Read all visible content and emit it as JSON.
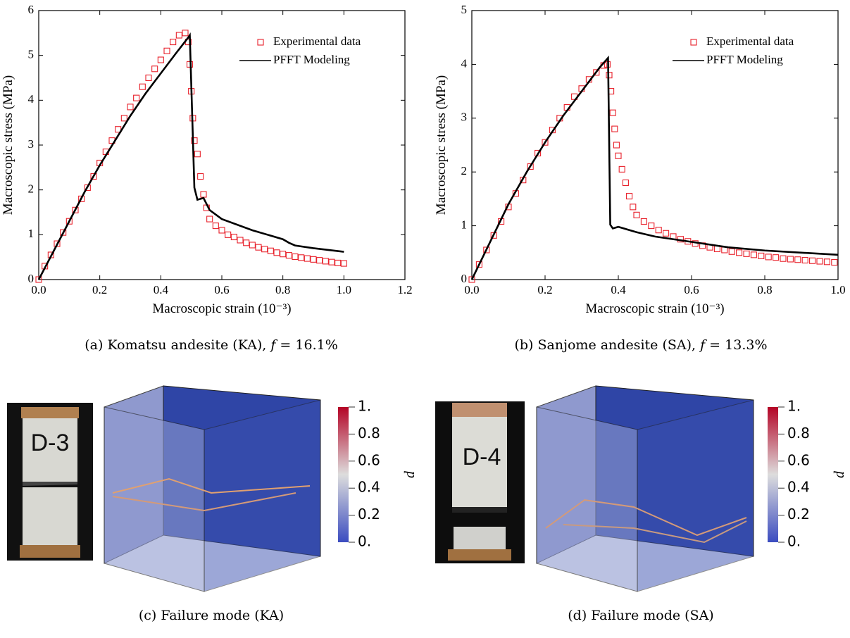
{
  "chart_data": [
    {
      "type": "scatter-line",
      "xlabel": "Macroscopic strain (10⁻³)",
      "ylabel": "Macroscopic stress (MPa)",
      "xlim": [
        0,
        1.2
      ],
      "ylim": [
        0,
        6
      ],
      "xticks": [
        {
          "value": 0,
          "label": "0.0"
        },
        0.2,
        0.4,
        0.6,
        0.8,
        {
          "value": 1,
          "label": "1.0"
        },
        1.2
      ],
      "yticks": [
        0,
        1,
        2,
        3,
        4,
        5,
        6
      ],
      "legend": "upper right",
      "series": [
        {
          "name": "Experimental data",
          "color": "#e8202a",
          "style": "marker",
          "x": [
            0,
            0.02,
            0.04,
            0.06,
            0.08,
            0.1,
            0.12,
            0.14,
            0.16,
            0.18,
            0.2,
            0.22,
            0.24,
            0.26,
            0.28,
            0.3,
            0.32,
            0.34,
            0.36,
            0.38,
            0.4,
            0.42,
            0.44,
            0.46,
            0.48,
            0.49,
            0.495,
            0.5,
            0.505,
            0.51,
            0.52,
            0.53,
            0.54,
            0.55,
            0.56,
            0.58,
            0.6,
            0.62,
            0.64,
            0.66,
            0.68,
            0.7,
            0.72,
            0.74,
            0.76,
            0.78,
            0.8,
            0.82,
            0.84,
            0.86,
            0.88,
            0.9,
            0.92,
            0.94,
            0.96,
            0.98,
            1.0
          ],
          "values": [
            0,
            0.3,
            0.55,
            0.8,
            1.05,
            1.3,
            1.55,
            1.8,
            2.05,
            2.3,
            2.6,
            2.85,
            3.1,
            3.35,
            3.6,
            3.85,
            4.05,
            4.3,
            4.5,
            4.7,
            4.9,
            5.1,
            5.3,
            5.45,
            5.5,
            5.3,
            4.8,
            4.2,
            3.6,
            3.1,
            2.8,
            2.3,
            1.9,
            1.6,
            1.35,
            1.2,
            1.1,
            1.0,
            0.95,
            0.88,
            0.82,
            0.77,
            0.72,
            0.68,
            0.64,
            0.6,
            0.57,
            0.54,
            0.51,
            0.49,
            0.47,
            0.45,
            0.43,
            0.41,
            0.39,
            0.37,
            0.36
          ]
        },
        {
          "name": "PFFT Modeling",
          "color": "#000000",
          "style": "line",
          "x": [
            0,
            0.05,
            0.1,
            0.15,
            0.2,
            0.25,
            0.3,
            0.35,
            0.4,
            0.45,
            0.49,
            0.495,
            0.51,
            0.52,
            0.54,
            0.56,
            0.6,
            0.7,
            0.8,
            0.82,
            0.84,
            0.9,
            1.0
          ],
          "values": [
            0,
            0.65,
            1.3,
            1.95,
            2.55,
            3.1,
            3.65,
            4.15,
            4.6,
            5.05,
            5.4,
            5.45,
            2.05,
            1.78,
            1.82,
            1.55,
            1.35,
            1.1,
            0.9,
            0.82,
            0.76,
            0.7,
            0.62
          ]
        }
      ]
    },
    {
      "type": "scatter-line",
      "xlabel": "Macroscopic strain (10⁻³)",
      "ylabel": "Macroscopic stress (MPa)",
      "xlim": [
        0,
        1
      ],
      "ylim": [
        0,
        5
      ],
      "xticks": [
        {
          "value": 0,
          "label": "0.0"
        },
        0.2,
        0.4,
        0.6,
        0.8,
        {
          "value": 1,
          "label": "1.0"
        }
      ],
      "yticks": [
        0,
        1,
        2,
        3,
        4,
        5
      ],
      "legend": "upper right",
      "series": [
        {
          "name": "Experimental data",
          "color": "#e8202a",
          "style": "marker",
          "x": [
            0,
            0.02,
            0.04,
            0.06,
            0.08,
            0.1,
            0.12,
            0.14,
            0.16,
            0.18,
            0.2,
            0.22,
            0.24,
            0.26,
            0.28,
            0.3,
            0.32,
            0.34,
            0.36,
            0.37,
            0.375,
            0.38,
            0.385,
            0.39,
            0.395,
            0.4,
            0.41,
            0.42,
            0.43,
            0.44,
            0.45,
            0.47,
            0.49,
            0.51,
            0.53,
            0.55,
            0.57,
            0.59,
            0.61,
            0.63,
            0.65,
            0.67,
            0.69,
            0.71,
            0.73,
            0.75,
            0.77,
            0.79,
            0.81,
            0.83,
            0.85,
            0.87,
            0.89,
            0.91,
            0.93,
            0.95,
            0.97,
            0.99
          ],
          "values": [
            0,
            0.28,
            0.55,
            0.82,
            1.08,
            1.35,
            1.6,
            1.85,
            2.1,
            2.35,
            2.55,
            2.78,
            3.0,
            3.2,
            3.4,
            3.55,
            3.72,
            3.85,
            3.98,
            4.0,
            3.8,
            3.5,
            3.1,
            2.8,
            2.5,
            2.3,
            2.05,
            1.8,
            1.55,
            1.35,
            1.2,
            1.08,
            1.0,
            0.92,
            0.86,
            0.8,
            0.75,
            0.71,
            0.67,
            0.63,
            0.6,
            0.57,
            0.55,
            0.52,
            0.5,
            0.48,
            0.46,
            0.44,
            0.42,
            0.41,
            0.39,
            0.38,
            0.37,
            0.36,
            0.35,
            0.34,
            0.33,
            0.32
          ]
        },
        {
          "name": "PFFT Modeling",
          "color": "#000000",
          "style": "line",
          "x": [
            0,
            0.05,
            0.1,
            0.15,
            0.2,
            0.25,
            0.3,
            0.35,
            0.372,
            0.378,
            0.385,
            0.4,
            0.45,
            0.5,
            0.6,
            0.7,
            0.8,
            0.9,
            1.0
          ],
          "values": [
            0,
            0.7,
            1.4,
            2.0,
            2.55,
            3.05,
            3.5,
            3.95,
            4.12,
            1.02,
            0.95,
            0.98,
            0.88,
            0.8,
            0.7,
            0.6,
            0.54,
            0.5,
            0.46
          ]
        }
      ]
    }
  ],
  "captions": [
    [
      "(a) Komatsu andesite (KA), ",
      "f",
      " = 16.1%"
    ],
    [
      "(b) Sanjome andesite (SA), ",
      "f",
      " = 13.3%"
    ],
    [
      "(c) Failure mode (KA)"
    ],
    [
      "(d) Failure mode (SA)"
    ]
  ],
  "photo_labels": [
    "D-3",
    "D-4"
  ],
  "colorbars": [
    {
      "label": "d",
      "colors": [
        "#3b4cc0",
        "#dddddd",
        "#b40426"
      ],
      "ticks": [
        {
          "value": 1,
          "label": "1."
        },
        0.8,
        0.6,
        0.4,
        0.2,
        {
          "value": 0,
          "label": "0."
        }
      ]
    },
    {
      "label": "d",
      "colors": [
        "#3b4cc0",
        "#dddddd",
        "#b40426"
      ],
      "ticks": [
        {
          "value": 1,
          "label": "1."
        },
        0.8,
        0.6,
        0.4,
        0.2,
        {
          "value": 0,
          "label": "0."
        }
      ]
    }
  ]
}
